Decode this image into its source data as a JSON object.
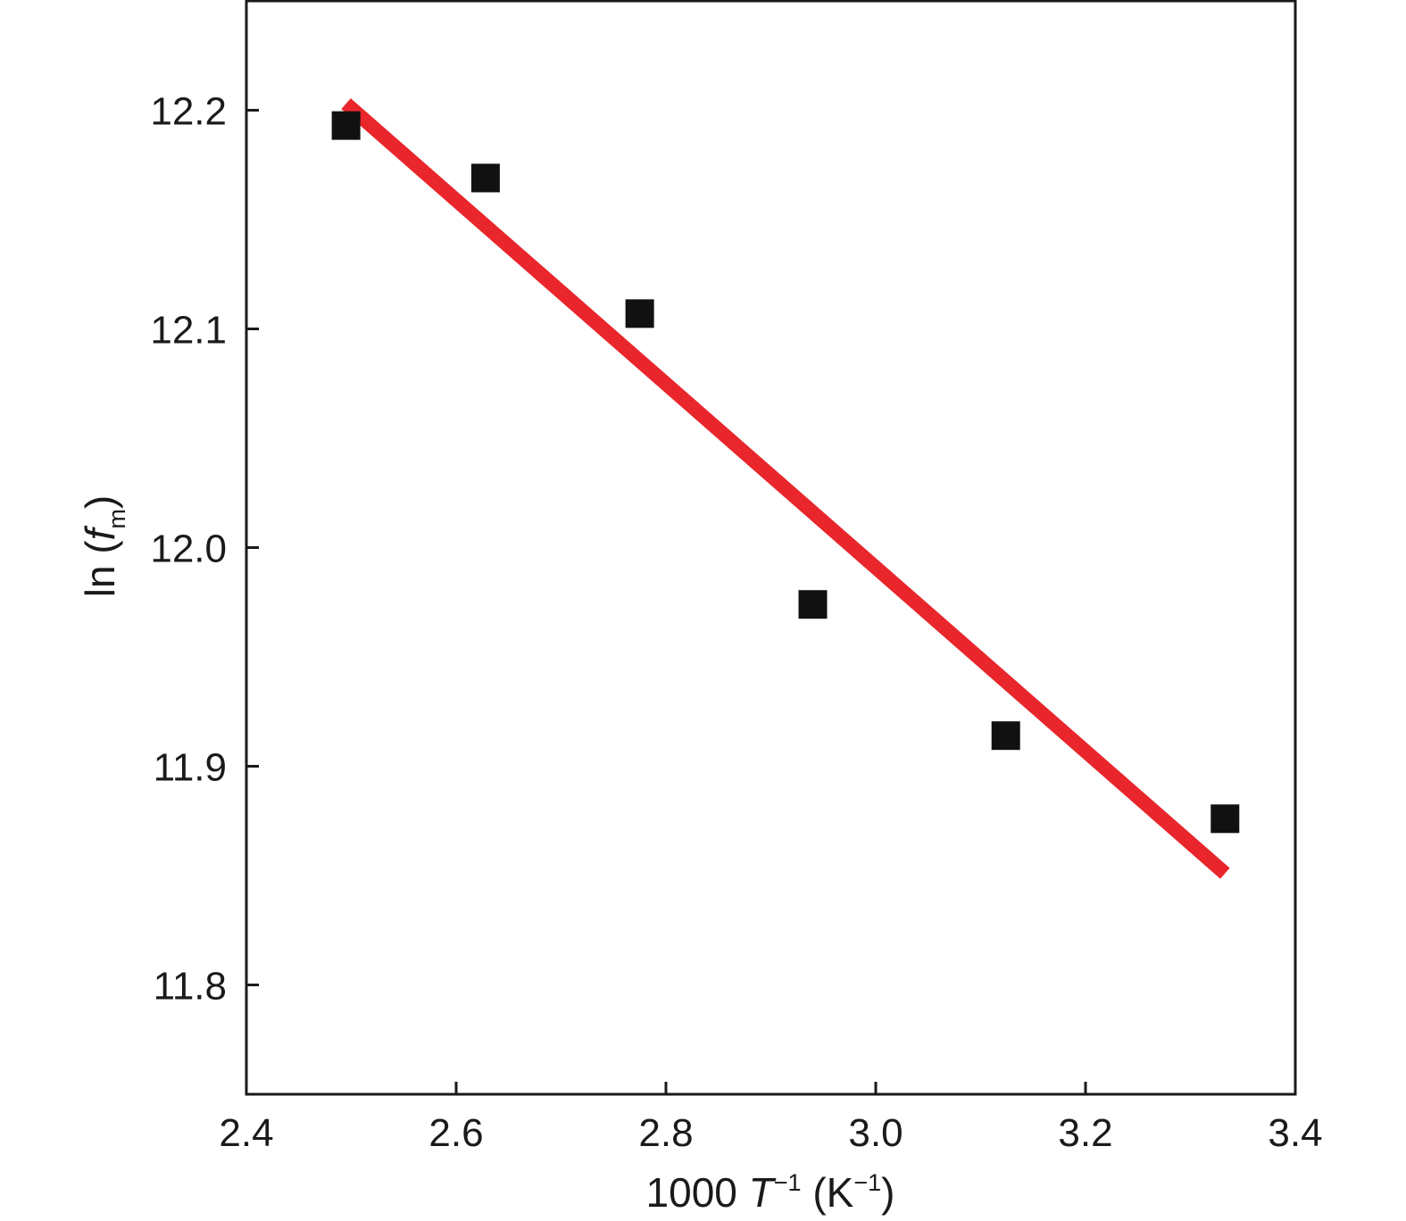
{
  "chart_data": {
    "type": "scatter",
    "title": "",
    "xlabel_parts": {
      "prefix": "1000 ",
      "var": "T",
      "sup": "−1",
      "mid": " (K",
      "unit_sup": "−1",
      "suffix": ")"
    },
    "ylabel_parts": {
      "prefix": "ln (",
      "var": "f",
      "sub": "m",
      "suffix": ")"
    },
    "xlim": [
      2.4,
      3.4
    ],
    "ylim": [
      11.75,
      12.25
    ],
    "xticks": [
      "2.4",
      "2.6",
      "2.8",
      "3.0",
      "3.2",
      "3.4"
    ],
    "yticks": [
      "11.8",
      "11.9",
      "12.0",
      "12.1",
      "12.2"
    ],
    "grid": false,
    "series": [
      {
        "kind": "points",
        "marker": "square",
        "color": "#111111",
        "x": [
          2.495,
          2.628,
          2.775,
          2.94,
          3.124,
          3.333
        ],
        "y": [
          12.193,
          12.169,
          12.107,
          11.974,
          11.914,
          11.876
        ]
      },
      {
        "kind": "fit-line",
        "color": "#e8262c",
        "x": [
          2.495,
          3.333
        ],
        "y": [
          12.203,
          11.851
        ]
      }
    ]
  }
}
